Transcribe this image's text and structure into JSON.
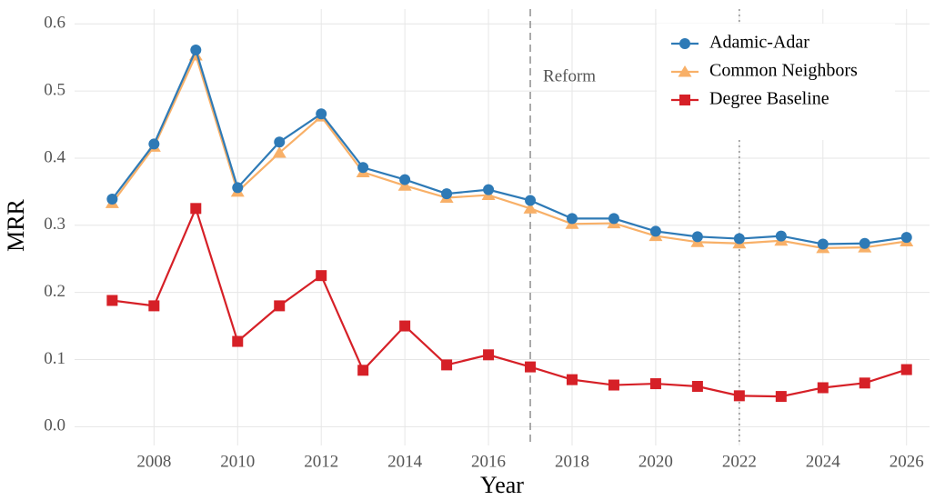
{
  "chart_data": {
    "type": "line",
    "x_label": "Year",
    "y_label": "MRR",
    "x": [
      2007,
      2008,
      2009,
      2010,
      2011,
      2012,
      2013,
      2014,
      2015,
      2016,
      2017,
      2018,
      2019,
      2020,
      2021,
      2022,
      2023,
      2024,
      2025,
      2026
    ],
    "series": [
      {
        "name": "Adamic-Adar",
        "color": "#2e7ab6",
        "marker": "circle",
        "values": [
          0.339,
          0.421,
          0.561,
          0.356,
          0.424,
          0.466,
          0.386,
          0.368,
          0.347,
          0.353,
          0.337,
          0.31,
          0.31,
          0.291,
          0.283,
          0.28,
          0.284,
          0.272,
          0.273,
          0.282
        ]
      },
      {
        "name": "Common Neighbors",
        "color": "#f8b068",
        "marker": "triangle",
        "values": [
          0.333,
          0.417,
          0.553,
          0.35,
          0.408,
          0.462,
          0.379,
          0.359,
          0.341,
          0.345,
          0.325,
          0.302,
          0.303,
          0.284,
          0.275,
          0.273,
          0.277,
          0.266,
          0.267,
          0.276
        ]
      },
      {
        "name": "Degree Baseline",
        "color": "#d62027",
        "marker": "square",
        "values": [
          0.188,
          0.18,
          0.325,
          0.127,
          0.18,
          0.225,
          0.084,
          0.15,
          0.092,
          0.107,
          0.089,
          0.07,
          0.062,
          0.064,
          0.06,
          0.046,
          0.045,
          0.058,
          0.065,
          0.085
        ]
      }
    ],
    "vlines": [
      {
        "x": 2017,
        "label": "Reform",
        "style": "dashed"
      },
      {
        "x": 2022,
        "style": "dotted"
      }
    ],
    "xlim": [
      2006.1,
      2026.55
    ],
    "ylim": [
      -0.028,
      0.622
    ],
    "xticks": [
      2008,
      2010,
      2012,
      2014,
      2016,
      2018,
      2020,
      2022,
      2024,
      2026
    ],
    "yticks": [
      {
        "value": 0,
        "label": "0.0"
      },
      0.1,
      0.2,
      0.3,
      0.4,
      0.5,
      0.6
    ],
    "grid": true,
    "legend": "top-right"
  }
}
